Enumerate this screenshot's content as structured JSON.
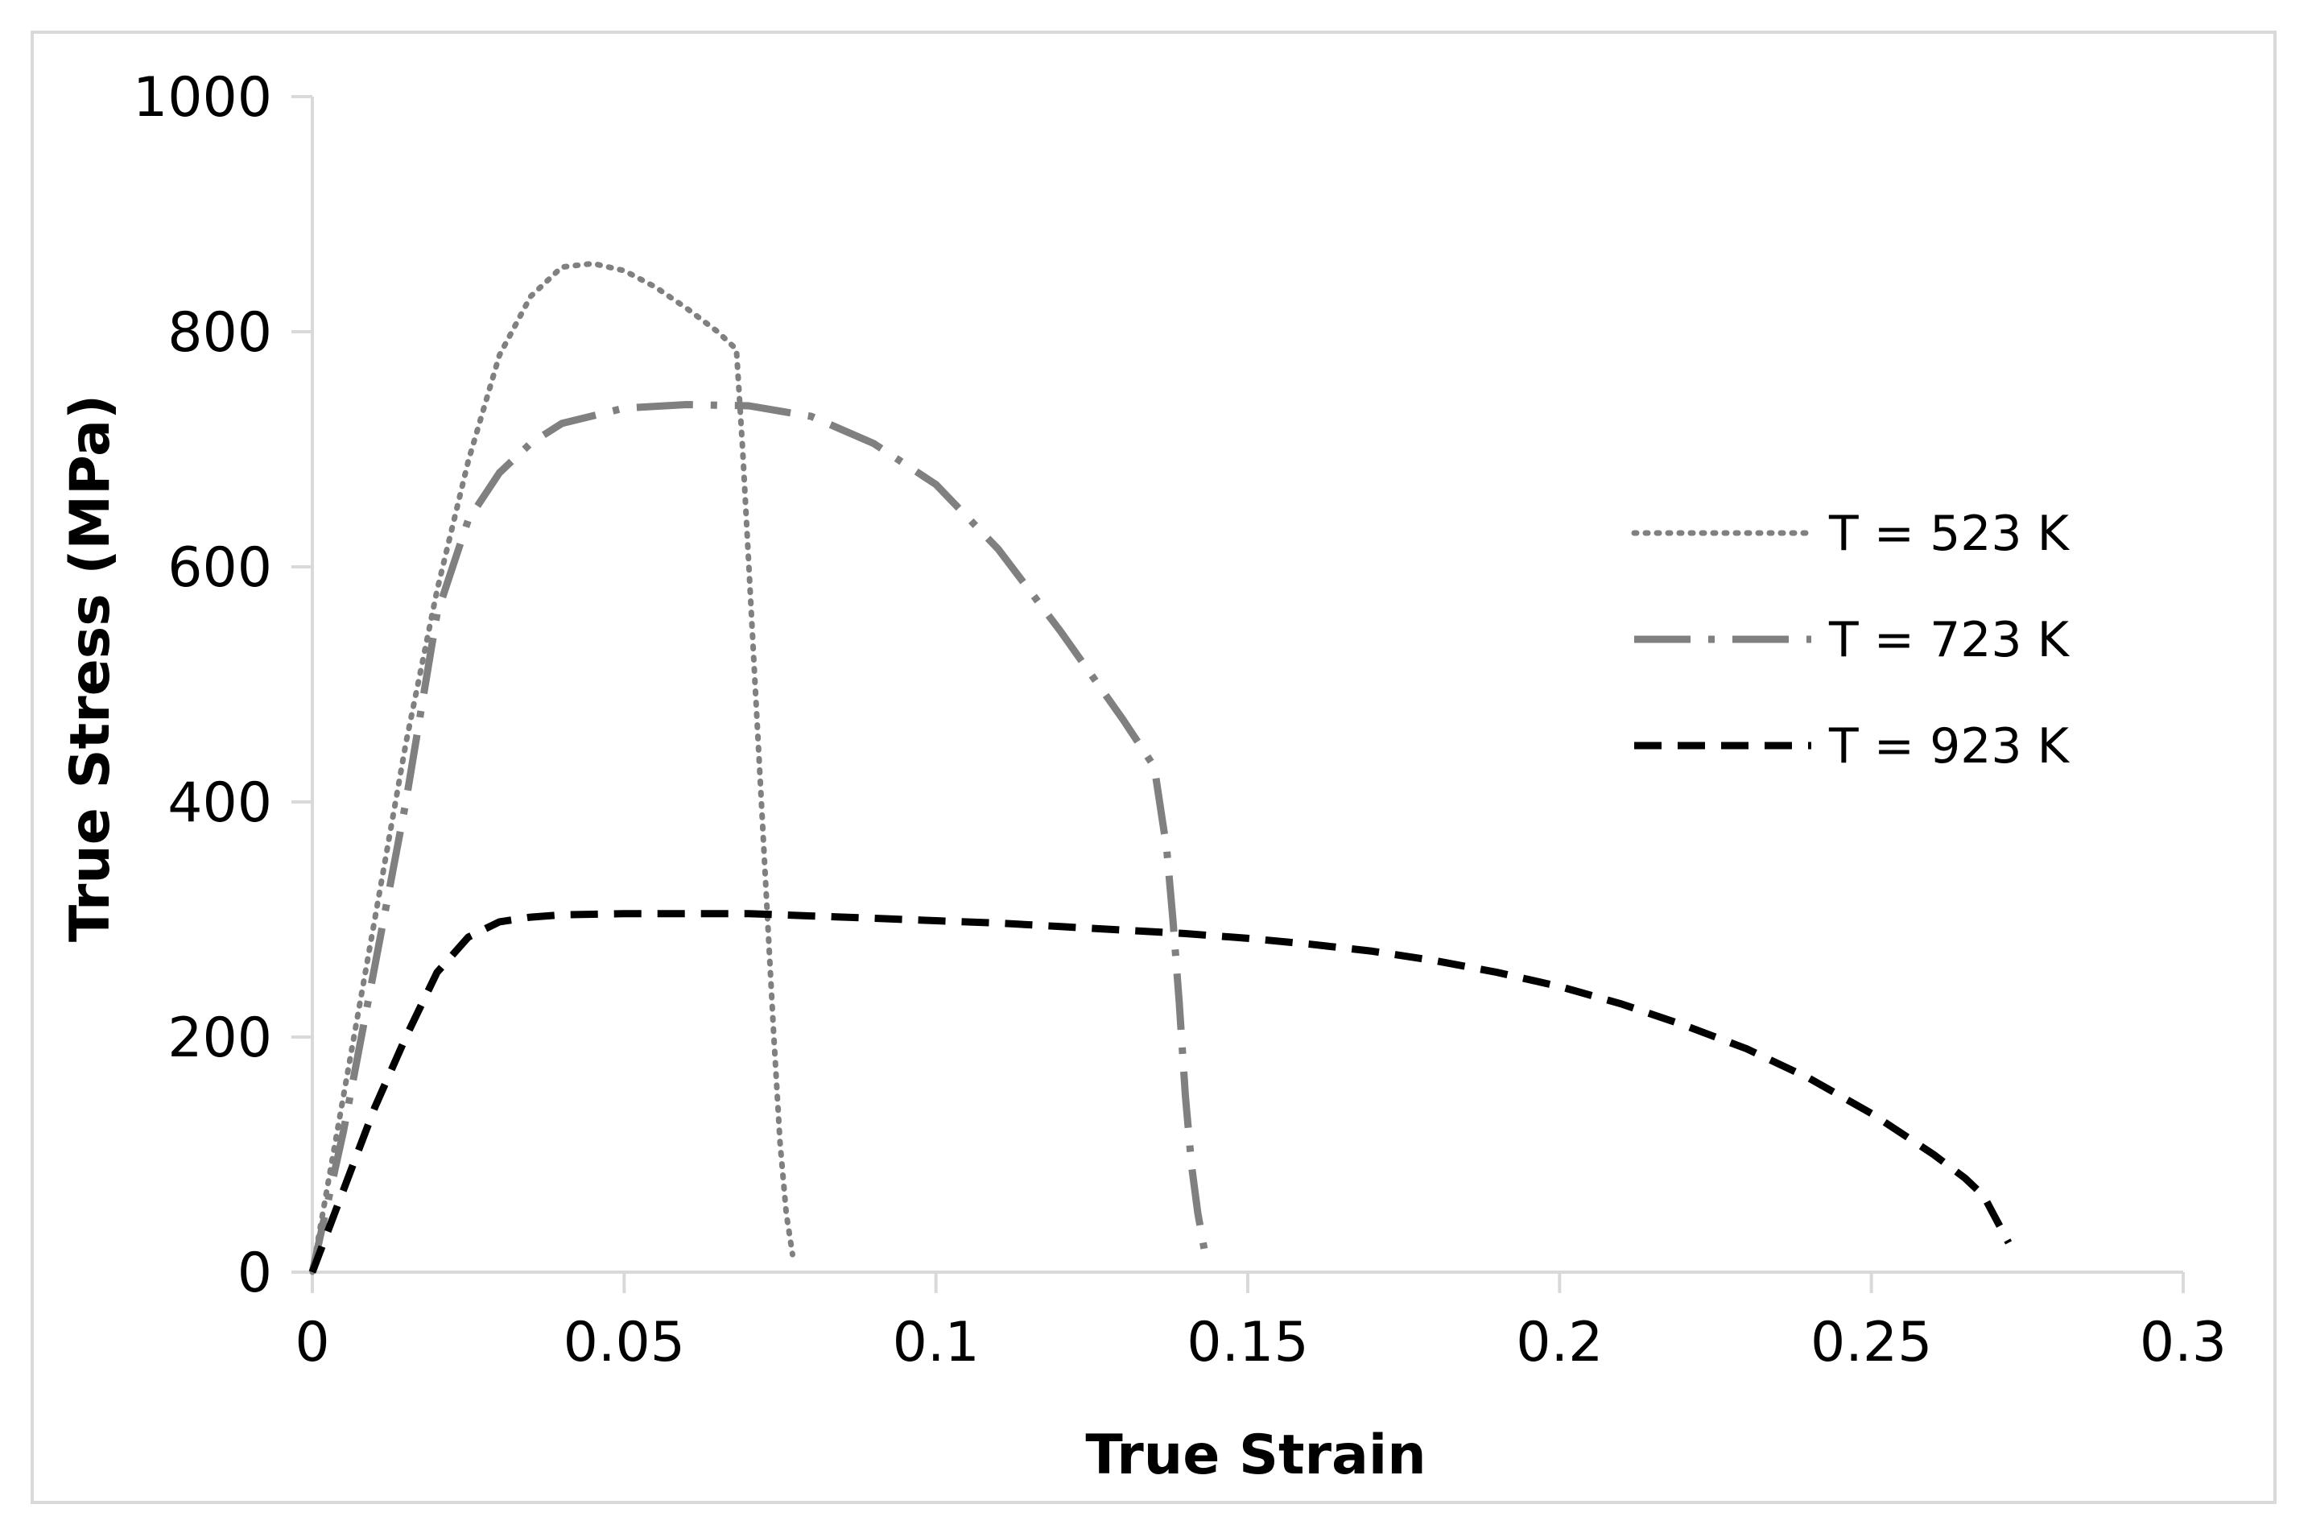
{
  "chart_data": {
    "type": "line",
    "title": "",
    "xlabel": "True Strain",
    "ylabel": "True Stress (MPa)",
    "xlim": [
      0,
      0.3
    ],
    "ylim": [
      0,
      1000
    ],
    "x_ticks": [
      0,
      0.05,
      0.1,
      0.15,
      0.2,
      0.25,
      0.3
    ],
    "x_tick_labels": [
      "0",
      "0.05",
      "0.1",
      "0.15",
      "0.2",
      "0.25",
      "0.3"
    ],
    "y_ticks": [
      0,
      200,
      400,
      600,
      800,
      1000
    ],
    "y_tick_labels": [
      "0",
      "200",
      "400",
      "600",
      "800",
      "1000"
    ],
    "grid": false,
    "legend_position": "right",
    "series": [
      {
        "name": "T = 523 K",
        "line_style": "dotted",
        "color": "#808080",
        "points": [
          [
            0,
            0
          ],
          [
            0.005,
            150
          ],
          [
            0.01,
            300
          ],
          [
            0.015,
            450
          ],
          [
            0.02,
            580
          ],
          [
            0.025,
            690
          ],
          [
            0.03,
            780
          ],
          [
            0.035,
            830
          ],
          [
            0.04,
            855
          ],
          [
            0.045,
            858
          ],
          [
            0.05,
            852
          ],
          [
            0.055,
            838
          ],
          [
            0.06,
            820
          ],
          [
            0.065,
            800
          ],
          [
            0.068,
            785
          ],
          [
            0.069,
            700
          ],
          [
            0.07,
            600
          ],
          [
            0.071,
            500
          ],
          [
            0.072,
            400
          ],
          [
            0.073,
            300
          ],
          [
            0.074,
            200
          ],
          [
            0.075,
            110
          ],
          [
            0.076,
            50
          ],
          [
            0.077,
            15
          ]
        ]
      },
      {
        "name": "T = 723 K",
        "line_style": "dash-dot",
        "color": "#808080",
        "points": [
          [
            0,
            0
          ],
          [
            0.005,
            120
          ],
          [
            0.01,
            260
          ],
          [
            0.015,
            400
          ],
          [
            0.02,
            560
          ],
          [
            0.025,
            640
          ],
          [
            0.03,
            680
          ],
          [
            0.035,
            705
          ],
          [
            0.04,
            722
          ],
          [
            0.05,
            735
          ],
          [
            0.06,
            738
          ],
          [
            0.07,
            737
          ],
          [
            0.08,
            728
          ],
          [
            0.09,
            705
          ],
          [
            0.1,
            670
          ],
          [
            0.11,
            615
          ],
          [
            0.12,
            545
          ],
          [
            0.13,
            470
          ],
          [
            0.135,
            430
          ],
          [
            0.137,
            360
          ],
          [
            0.138,
            300
          ],
          [
            0.139,
            230
          ],
          [
            0.14,
            150
          ],
          [
            0.141,
            90
          ],
          [
            0.142,
            50
          ],
          [
            0.143,
            20
          ]
        ]
      },
      {
        "name": "T = 923 K",
        "line_style": "dashed",
        "color": "#000000",
        "points": [
          [
            0,
            0
          ],
          [
            0.005,
            70
          ],
          [
            0.01,
            140
          ],
          [
            0.015,
            200
          ],
          [
            0.02,
            255
          ],
          [
            0.025,
            285
          ],
          [
            0.03,
            298
          ],
          [
            0.035,
            302
          ],
          [
            0.04,
            304
          ],
          [
            0.05,
            305
          ],
          [
            0.06,
            305
          ],
          [
            0.07,
            305
          ],
          [
            0.08,
            303
          ],
          [
            0.09,
            301
          ],
          [
            0.1,
            299
          ],
          [
            0.11,
            297
          ],
          [
            0.12,
            294
          ],
          [
            0.13,
            291
          ],
          [
            0.14,
            288
          ],
          [
            0.15,
            284
          ],
          [
            0.16,
            279
          ],
          [
            0.17,
            273
          ],
          [
            0.18,
            265
          ],
          [
            0.19,
            255
          ],
          [
            0.2,
            243
          ],
          [
            0.21,
            228
          ],
          [
            0.22,
            210
          ],
          [
            0.23,
            190
          ],
          [
            0.24,
            165
          ],
          [
            0.25,
            135
          ],
          [
            0.26,
            100
          ],
          [
            0.265,
            80
          ],
          [
            0.268,
            65
          ],
          [
            0.27,
            45
          ],
          [
            0.272,
            25
          ]
        ]
      }
    ]
  }
}
